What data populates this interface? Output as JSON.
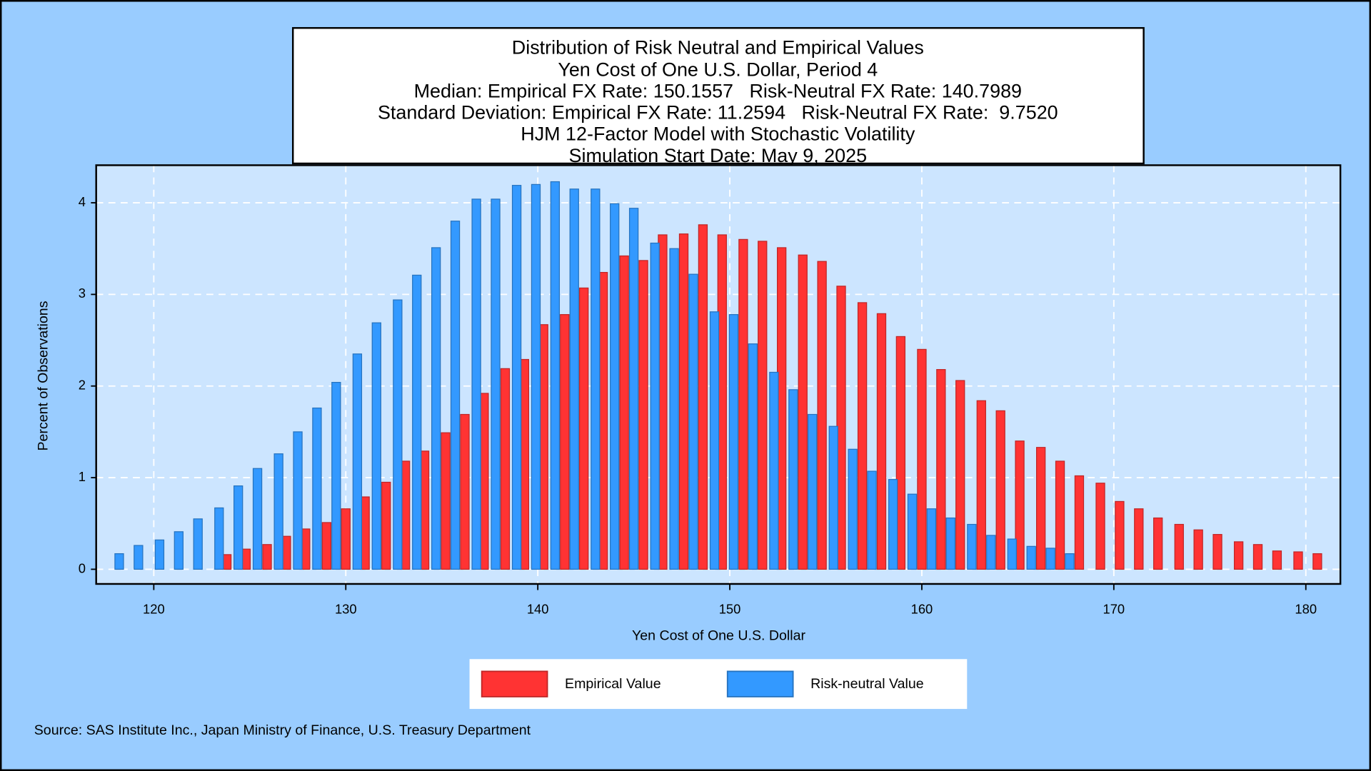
{
  "chart_data": {
    "type": "bar",
    "title": "Distribution of Risk Neutral and Empirical Values",
    "subtitles": [
      "Yen Cost of One U.S. Dollar, Period 4",
      "Median: Empirical FX Rate: 150.1557   Risk-Neutral FX Rate: 140.7989",
      "Standard Deviation: Empirical FX Rate: 11.2594   Risk-Neutral FX Rate:  9.7520",
      "HJM 12-Factor Model with Stochastic Volatility",
      "Simulation Start Date: May 9, 2025"
    ],
    "x_label": "Yen Cost of One U.S. Dollar",
    "y_label": "Percent of Observations",
    "source": "Source: SAS Institute Inc., Japan Ministry of Finance, U.S. Treasury Department",
    "xlim": [
      117.0,
      181.8
    ],
    "xticks": [
      120,
      130,
      140,
      150,
      160,
      170,
      180
    ],
    "ylim": [
      -0.16,
      4.41
    ],
    "yticks": [
      0,
      1,
      2,
      3,
      4
    ],
    "grid": true,
    "series": [
      {
        "name": "Empirical Value",
        "color": "#ff3333",
        "x": [
          123.8,
          124.8,
          125.9,
          126.9,
          127.9,
          129.0,
          130.0,
          131.0,
          132.1,
          133.1,
          134.1,
          135.2,
          136.2,
          137.2,
          138.3,
          139.3,
          140.3,
          141.4,
          142.4,
          143.4,
          144.5,
          145.5,
          146.5,
          147.6,
          148.6,
          149.6,
          150.7,
          151.7,
          152.7,
          153.8,
          154.8,
          155.8,
          156.9,
          157.9,
          158.9,
          160.0,
          161.0,
          162.0,
          163.1,
          164.1,
          165.1,
          166.2,
          167.2,
          168.2,
          169.3,
          170.3,
          171.3,
          172.3,
          173.4,
          174.4,
          175.4,
          176.5,
          177.5,
          178.5,
          179.6,
          180.6
        ],
        "values": [
          0.16,
          0.22,
          0.27,
          0.36,
          0.44,
          0.51,
          0.66,
          0.79,
          0.95,
          1.18,
          1.29,
          1.49,
          1.69,
          1.92,
          2.19,
          2.29,
          2.67,
          2.78,
          3.07,
          3.24,
          3.42,
          3.37,
          3.65,
          3.66,
          3.76,
          3.65,
          3.6,
          3.58,
          3.51,
          3.43,
          3.36,
          3.09,
          2.91,
          2.79,
          2.54,
          2.4,
          2.18,
          2.06,
          1.84,
          1.73,
          1.4,
          1.33,
          1.18,
          1.02,
          0.94,
          0.74,
          0.66,
          0.56,
          0.49,
          0.43,
          0.38,
          0.3,
          0.27,
          0.2,
          0.19,
          0.17
        ]
      },
      {
        "name": "Risk-neutral Value",
        "color": "#3399ff",
        "x": [
          118.2,
          119.2,
          120.3,
          121.3,
          122.3,
          123.4,
          124.4,
          125.4,
          126.5,
          127.5,
          128.5,
          129.5,
          130.6,
          131.6,
          132.7,
          133.7,
          134.7,
          135.7,
          136.8,
          137.8,
          138.9,
          139.9,
          140.9,
          141.9,
          143.0,
          144.0,
          145.0,
          146.1,
          147.1,
          148.1,
          149.2,
          150.2,
          151.2,
          152.3,
          153.3,
          154.3,
          155.4,
          156.4,
          157.4,
          158.5,
          159.5,
          160.5,
          161.5,
          162.6,
          163.6,
          164.7,
          165.7,
          166.7,
          167.7
        ],
        "values": [
          0.17,
          0.26,
          0.32,
          0.41,
          0.55,
          0.67,
          0.91,
          1.1,
          1.26,
          1.5,
          1.76,
          2.04,
          2.35,
          2.69,
          2.94,
          3.21,
          3.51,
          3.8,
          4.04,
          4.04,
          4.19,
          4.2,
          4.23,
          4.15,
          4.15,
          3.99,
          3.94,
          3.56,
          3.5,
          3.22,
          2.81,
          2.78,
          2.46,
          2.15,
          1.96,
          1.69,
          1.56,
          1.31,
          1.07,
          0.98,
          0.82,
          0.66,
          0.56,
          0.49,
          0.37,
          0.33,
          0.25,
          0.23,
          0.17
        ]
      }
    ]
  }
}
